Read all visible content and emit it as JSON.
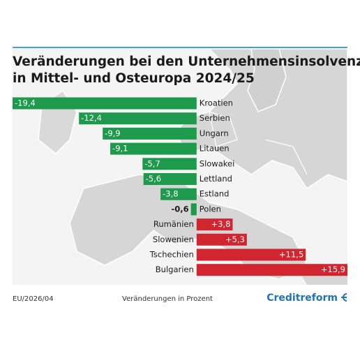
{
  "chart_data": {
    "type": "bar",
    "orientation": "horizontal",
    "title": [
      "Veränderungen bei den Unternehmensinsolvenzen",
      "in Mittel- und Osteuropa 2024/25"
    ],
    "categories": [
      "Kroatien",
      "Serbien",
      "Ungarn",
      "Litauen",
      "Slowakei",
      "Lettland",
      "Estland",
      "Polen",
      "Rumänien",
      "Slowenien",
      "Tschechien",
      "Bulgarien"
    ],
    "values": [
      -19.4,
      -12.4,
      -9.9,
      -9.1,
      -5.7,
      -5.6,
      -3.8,
      -0.6,
      3.8,
      5.3,
      11.5,
      15.9
    ],
    "value_labels": [
      "-19,4",
      "-12,4",
      "-9,9",
      "-9,1",
      "-5,7",
      "-5,6",
      "-3,8",
      "-0,6",
      "+3,8",
      "+5,3",
      "+11,5",
      "+15,9"
    ],
    "colors": {
      "negative": "#1d9a4b",
      "positive": "#d12530"
    },
    "xlabel": "Veränderungen in Prozent",
    "source": "EU/2026/04",
    "brand": "Creditreform"
  }
}
